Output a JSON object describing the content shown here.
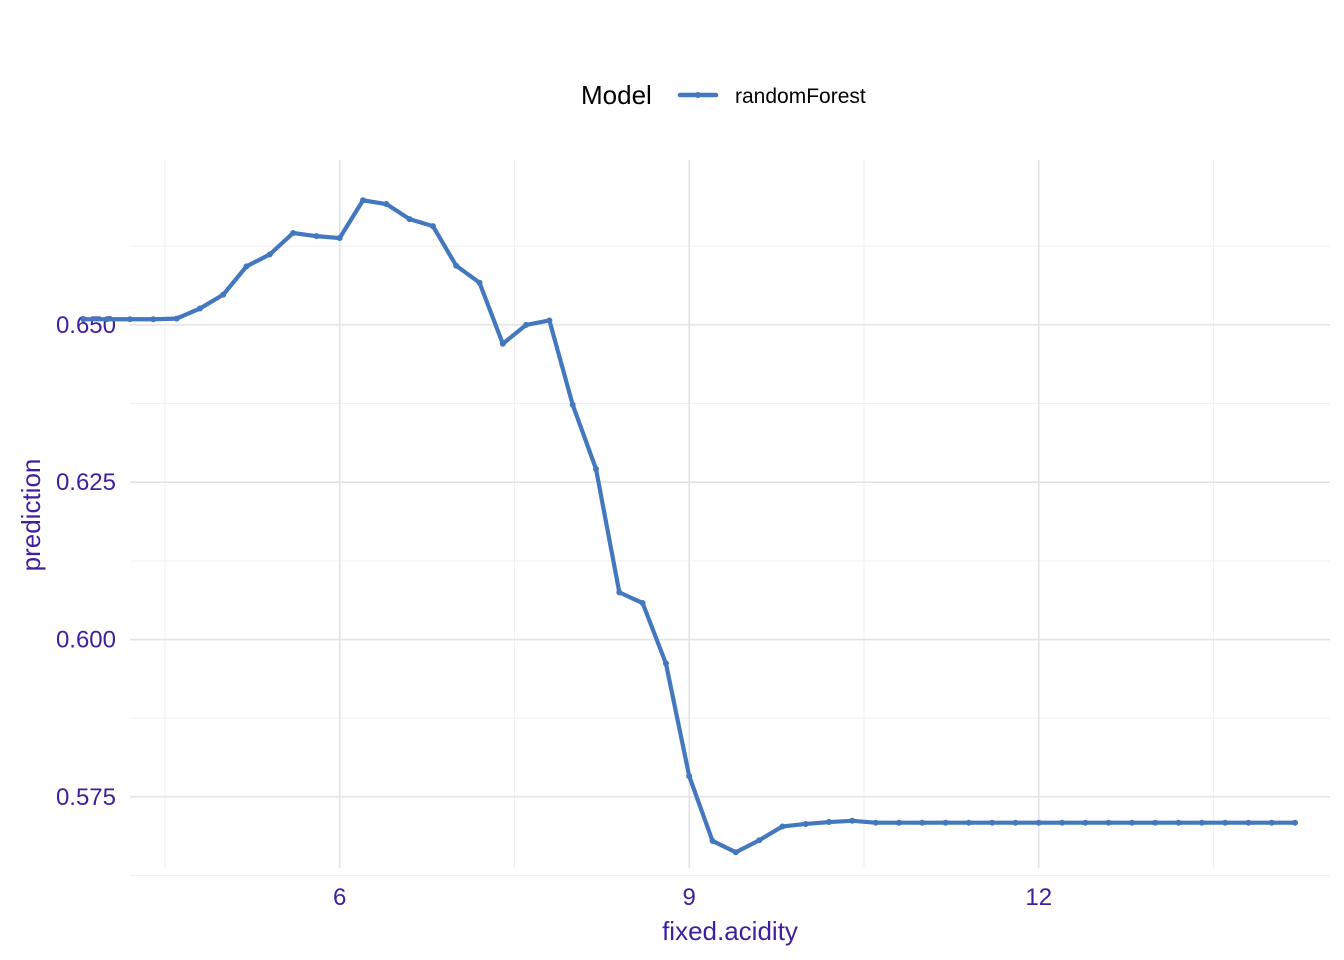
{
  "colors": {
    "series": "#4378bf",
    "axis_text": "#3f1f9f",
    "grid_major": "#e3e3e3",
    "grid_minor": "#f0f0f0"
  },
  "legend": {
    "title": "Model",
    "position": "top"
  },
  "chart_data": {
    "type": "line",
    "xlabel": "fixed.acidity",
    "ylabel": "prediction",
    "xlim": [
      4.2,
      14.5
    ],
    "ylim": [
      0.5637,
      0.6762
    ],
    "x_ticks": [
      6,
      9,
      12
    ],
    "x_tick_labels": [
      "6",
      "9",
      "12"
    ],
    "x_minor_ticks": [
      4.5,
      7.5,
      10.5,
      13.5
    ],
    "y_ticks": [
      0.575,
      0.6,
      0.625,
      0.65
    ],
    "y_tick_labels": [
      "0.575",
      "0.600",
      "0.625",
      "0.650"
    ],
    "y_minor_ticks": [
      0.5625,
      0.5875,
      0.6125,
      0.6375,
      0.6625
    ],
    "grid": true,
    "series": [
      {
        "name": "randomForest",
        "x": [
          3.8,
          4.0,
          4.2,
          4.4,
          4.6,
          4.8,
          5.0,
          5.2,
          5.4,
          5.6,
          5.8,
          6.0,
          6.2,
          6.4,
          6.6,
          6.8,
          7.0,
          7.2,
          7.4,
          7.6,
          7.8,
          8.0,
          8.2,
          8.4,
          8.6,
          8.8,
          9.0,
          9.2,
          9.4,
          9.6,
          9.8,
          10.0,
          10.2,
          10.4,
          10.6,
          10.8,
          11.0,
          11.2,
          11.4,
          11.6,
          11.8,
          12.0,
          12.2,
          12.4,
          12.6,
          12.8,
          13.0,
          13.2,
          13.4,
          13.6,
          13.8,
          14.0,
          14.2
        ],
        "values": [
          0.6509,
          0.6509,
          0.6509,
          0.6509,
          0.651,
          0.6526,
          0.6548,
          0.6593,
          0.6612,
          0.6646,
          0.6641,
          0.6638,
          0.6698,
          0.6692,
          0.6668,
          0.6657,
          0.6594,
          0.6567,
          0.647,
          0.65,
          0.6507,
          0.6373,
          0.6271,
          0.6075,
          0.6058,
          0.5962,
          0.5783,
          0.568,
          0.5662,
          0.5681,
          0.5703,
          0.5707,
          0.571,
          0.5712,
          0.5709,
          0.5709,
          0.5709,
          0.5709,
          0.5709,
          0.5709,
          0.5709,
          0.5709,
          0.5709,
          0.5709,
          0.5709,
          0.5709,
          0.5709,
          0.5709,
          0.5709,
          0.5709,
          0.5709,
          0.5709,
          0.5709
        ]
      }
    ]
  }
}
